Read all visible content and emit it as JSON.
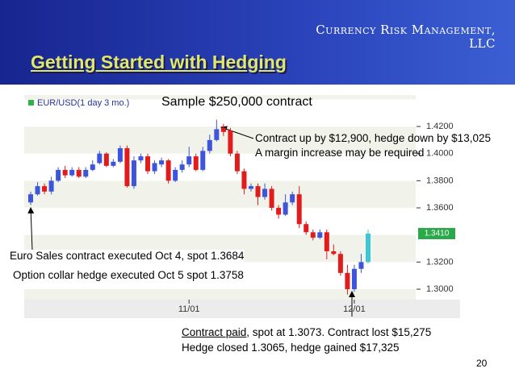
{
  "header": {
    "company": [
      "Currency Risk Management,",
      "LLC"
    ],
    "title": "Getting Started with Hedging"
  },
  "annotations": {
    "sample": "Sample $250,000 contract",
    "contract_up": [
      "Contract up by $12,900, hedge down by $13,025",
      "A margin increase may be required"
    ],
    "euro_sales": "Euro Sales contract executed Oct 4, spot 1.3684",
    "option_collar": "Option collar hedge executed Oct 5 spot 1.3758",
    "contract_paid": {
      "link": "Contract paid",
      "rest": ", spot at 1.3073. Contract lost $15,275"
    },
    "hedge_closed": "Hedge closed 1.3065, hedge gained $17,325"
  },
  "page_number": "20",
  "chart_data": {
    "type": "candlestick",
    "legend": "EUR/USD(1 day 3 mo.)",
    "legend_color": "#2db34a",
    "categories": [
      null,
      null,
      null,
      null,
      null,
      null,
      null,
      null,
      null,
      null,
      null,
      null,
      null,
      null,
      null,
      null,
      null,
      null,
      null,
      null,
      null,
      null,
      null,
      "11/01",
      null,
      null,
      null,
      null,
      null,
      null,
      null,
      null,
      null,
      null,
      null,
      null,
      null,
      null,
      null,
      null,
      null,
      null,
      null,
      null,
      null,
      null,
      null,
      "12/01",
      null,
      null
    ],
    "open": [
      1.364,
      1.37,
      1.376,
      1.372,
      1.38,
      1.388,
      1.384,
      1.388,
      1.383,
      1.388,
      1.393,
      1.4,
      1.391,
      1.394,
      1.404,
      1.376,
      1.395,
      1.398,
      1.387,
      1.392,
      1.395,
      1.38,
      1.388,
      1.392,
      1.398,
      1.388,
      1.402,
      1.41,
      1.419,
      1.417,
      1.4,
      1.387,
      1.374,
      1.376,
      1.368,
      1.374,
      1.36,
      1.355,
      1.364,
      1.37,
      1.348,
      1.342,
      1.338,
      1.342,
      1.328,
      1.326,
      1.312,
      1.3,
      1.315,
      1.32
    ],
    "high": [
      1.372,
      1.379,
      1.378,
      1.383,
      1.39,
      1.391,
      1.39,
      1.39,
      1.39,
      1.395,
      1.402,
      1.401,
      1.396,
      1.406,
      1.406,
      1.398,
      1.4,
      1.4,
      1.395,
      1.397,
      1.396,
      1.39,
      1.395,
      1.405,
      1.4,
      1.405,
      1.414,
      1.425,
      1.422,
      1.419,
      1.402,
      1.389,
      1.378,
      1.378,
      1.378,
      1.376,
      1.362,
      1.37,
      1.372,
      1.376,
      1.35,
      1.344,
      1.344,
      1.344,
      1.333,
      1.328,
      1.318,
      1.318,
      1.326,
      1.344
    ],
    "low": [
      1.362,
      1.369,
      1.37,
      1.37,
      1.379,
      1.382,
      1.383,
      1.382,
      1.382,
      1.387,
      1.392,
      1.39,
      1.39,
      1.393,
      1.375,
      1.374,
      1.393,
      1.385,
      1.385,
      1.39,
      1.378,
      1.379,
      1.386,
      1.39,
      1.387,
      1.387,
      1.4,
      1.409,
      1.413,
      1.398,
      1.385,
      1.37,
      1.372,
      1.362,
      1.366,
      1.358,
      1.352,
      1.354,
      1.362,
      1.345,
      1.34,
      1.336,
      1.337,
      1.322,
      1.325,
      1.31,
      1.296,
      1.298,
      1.312,
      1.319
    ],
    "close": [
      1.37,
      1.376,
      1.372,
      1.38,
      1.388,
      1.384,
      1.388,
      1.383,
      1.388,
      1.392,
      1.4,
      1.391,
      1.394,
      1.404,
      1.376,
      1.395,
      1.398,
      1.387,
      1.393,
      1.395,
      1.38,
      1.388,
      1.392,
      1.398,
      1.388,
      1.402,
      1.41,
      1.418,
      1.416,
      1.4,
      1.387,
      1.374,
      1.376,
      1.368,
      1.374,
      1.36,
      1.355,
      1.364,
      1.37,
      1.348,
      1.342,
      1.338,
      1.342,
      1.328,
      1.326,
      1.312,
      1.3,
      1.315,
      1.32,
      1.341
    ],
    "up_color": "#3d55dc",
    "down_color": "#e01c1c",
    "current_color": "#3cc6d6",
    "last_price": {
      "value": 1.341,
      "label": "1.3410"
    },
    "last_price_color": "#2aa84a",
    "ylim": [
      1.2923,
      1.4432
    ],
    "yticks": [
      {
        "value": 1.3,
        "label": "1.3000"
      },
      {
        "value": 1.32,
        "label": "1.3200"
      },
      {
        "value": 1.36,
        "label": "1.3600"
      },
      {
        "value": 1.38,
        "label": "1.3800"
      },
      {
        "value": 1.4,
        "label": "1.4000"
      },
      {
        "value": 1.42,
        "label": "1.4200"
      }
    ]
  }
}
